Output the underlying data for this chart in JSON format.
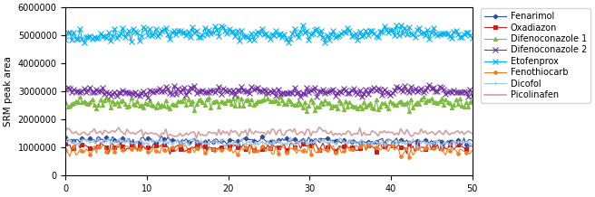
{
  "title": "",
  "xlabel": "",
  "ylabel": "SRM peak area",
  "xlim": [
    0,
    50
  ],
  "ylim": [
    0,
    6000000
  ],
  "yticks": [
    0,
    1000000,
    2000000,
    3000000,
    4000000,
    5000000,
    6000000
  ],
  "xticks": [
    0,
    10,
    20,
    30,
    40,
    50
  ],
  "series": [
    {
      "name": "Fenarimol",
      "color": "#2E4DA0",
      "mean": 1250000,
      "noise": 60000,
      "trend": -20000,
      "marker": "D",
      "markersize": 2.5,
      "linewidth": 0.8,
      "markevery": 4
    },
    {
      "name": "Oxadiazon",
      "color": "#C0231E",
      "mean": 1020000,
      "noise": 80000,
      "trend": -10000,
      "marker": "s",
      "markersize": 2.5,
      "linewidth": 0.8,
      "markevery": 4
    },
    {
      "name": "Difenoconazole 1",
      "color": "#7CBB3E",
      "mean": 2620000,
      "noise": 100000,
      "trend": -60000,
      "marker": "^",
      "markersize": 3,
      "linewidth": 0.8,
      "markevery": 1
    },
    {
      "name": "Difenoconazole 2",
      "color": "#7030A0",
      "mean": 3020000,
      "noise": 80000,
      "trend": -30000,
      "marker": "x",
      "markersize": 4,
      "linewidth": 0.8,
      "markevery": 1
    },
    {
      "name": "Etofenprox",
      "color": "#00B0F0",
      "mean": 5050000,
      "noise": 120000,
      "trend": 20000,
      "marker": "x",
      "markersize": 5,
      "linewidth": 0.8,
      "markevery": 1
    },
    {
      "name": "Fenothiocarb",
      "color": "#F47B20",
      "mean": 930000,
      "noise": 90000,
      "trend": -10000,
      "marker": "o",
      "markersize": 2.5,
      "linewidth": 0.8,
      "markevery": 4
    },
    {
      "name": "Dicofol",
      "color": "#9DC3E6",
      "mean": 1200000,
      "noise": 55000,
      "trend": -15000,
      "marker": "+",
      "markersize": 3,
      "linewidth": 0.8,
      "markevery": 2
    },
    {
      "name": "Picolinafen",
      "color": "#D4A0A0",
      "mean": 1530000,
      "noise": 70000,
      "trend": 0,
      "marker": null,
      "markersize": 2,
      "linewidth": 1.2,
      "markevery": 4
    }
  ],
  "n_points": 200,
  "seed": 7,
  "figsize": [
    6.56,
    2.18
  ],
  "dpi": 100
}
